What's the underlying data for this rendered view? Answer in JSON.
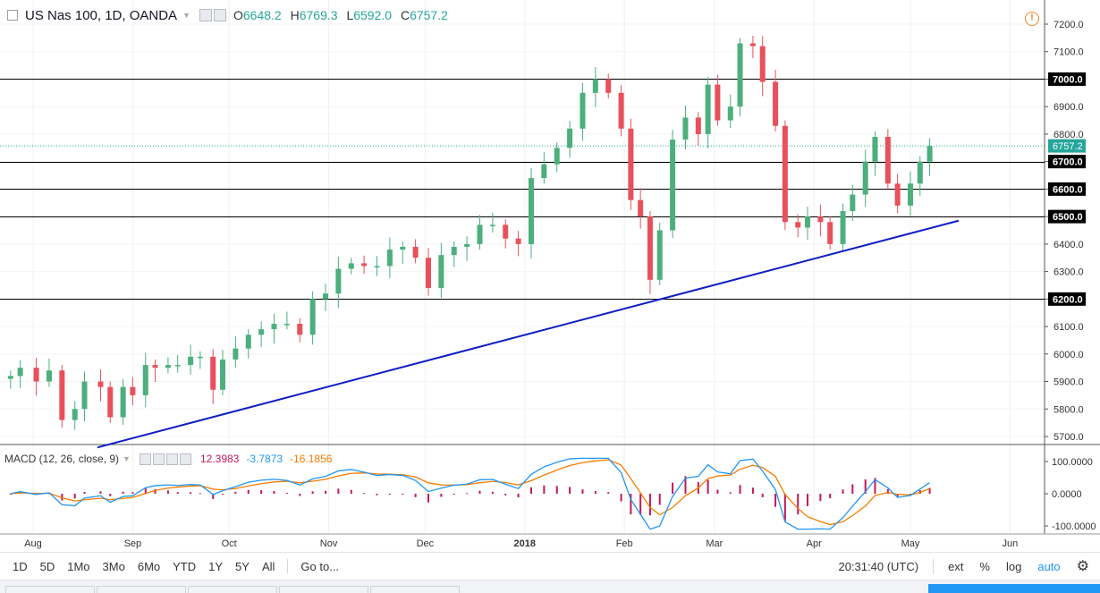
{
  "header": {
    "symbol": "US Nas 100, 1D, OANDA",
    "open_key": "O",
    "open": "6648.2",
    "high_key": "H",
    "high": "6769.3",
    "low_key": "L",
    "low": "6592.0",
    "close_key": "C",
    "close": "6757.2"
  },
  "macd": {
    "title": "MACD (12, 26, close, 9)",
    "histogram": "12.3983",
    "macd": "-3.7873",
    "signal": "-16.1856",
    "colors": {
      "histogram": "#c2185b",
      "macd": "#2196f3",
      "signal": "#f57c00"
    },
    "y_labels": [
      "100.0000",
      "0.0000",
      "-100.0000"
    ]
  },
  "toolbar": {
    "timeframes": [
      "1D",
      "5D",
      "1Mo",
      "3Mo",
      "6Mo",
      "YTD",
      "1Y",
      "5Y",
      "All"
    ],
    "goto": "Go to...",
    "time": "20:31:40 (UTC)",
    "ext": "ext",
    "percent": "%",
    "log": "log",
    "auto": "auto"
  },
  "chart_data": {
    "type": "candlestick",
    "title": "US Nas 100, 1D, OANDA",
    "y_axis_labels": [
      7200,
      7100,
      7000,
      6900,
      6800,
      6700,
      6600,
      6500,
      6400,
      6300,
      6200,
      6100,
      6000,
      5900,
      5800,
      5700
    ],
    "x_axis_labels": [
      {
        "label": "Aug",
        "x": "2017-08-01"
      },
      {
        "label": "Sep",
        "x": "2017-09-01"
      },
      {
        "label": "Oct",
        "x": "2017-10-01"
      },
      {
        "label": "Nov",
        "x": "2017-11-01"
      },
      {
        "label": "Dec",
        "x": "2017-12-01"
      },
      {
        "label": "2018",
        "x": "2018-01-01"
      },
      {
        "label": "Feb",
        "x": "2018-02-01"
      },
      {
        "label": "Mar",
        "x": "2018-03-01"
      },
      {
        "label": "Apr",
        "x": "2018-04-01"
      },
      {
        "label": "May",
        "x": "2018-05-01"
      },
      {
        "label": "Jun",
        "x": "2018-06-01"
      }
    ],
    "horizontal_levels": [
      7000,
      6700,
      6600,
      6500,
      6200
    ],
    "level_labels": [
      "7000.0",
      "6700.0",
      "6600.0",
      "6500.0",
      "6200.0"
    ],
    "last_price": 6757.2,
    "last_price_label": "6757.2",
    "trendline": {
      "from": {
        "x": "2017-08-21",
        "y": 5660
      },
      "to": {
        "x": "2018-05-16",
        "y": 6485
      }
    },
    "colors": {
      "up": "#4caf7d",
      "down": "#e8505b",
      "level": "#000000",
      "trendline": "#0d1ec2",
      "last_price": "#26a69a"
    },
    "closes": [
      [
        "2017-07-25",
        5920
      ],
      [
        "2017-07-28",
        5950
      ],
      [
        "2017-08-02",
        5900
      ],
      [
        "2017-08-06",
        5940
      ],
      [
        "2017-08-10",
        5760
      ],
      [
        "2017-08-14",
        5800
      ],
      [
        "2017-08-17",
        5900
      ],
      [
        "2017-08-22",
        5880
      ],
      [
        "2017-08-25",
        5770
      ],
      [
        "2017-08-29",
        5880
      ],
      [
        "2017-09-01",
        5850
      ],
      [
        "2017-09-05",
        5960
      ],
      [
        "2017-09-08",
        5950
      ],
      [
        "2017-09-12",
        5960
      ],
      [
        "2017-09-15",
        5960
      ],
      [
        "2017-09-19",
        5990
      ],
      [
        "2017-09-22",
        5990
      ],
      [
        "2017-09-26",
        5870
      ],
      [
        "2017-09-29",
        5980
      ],
      [
        "2017-10-03",
        6020
      ],
      [
        "2017-10-07",
        6070
      ],
      [
        "2017-10-11",
        6090
      ],
      [
        "2017-10-15",
        6110
      ],
      [
        "2017-10-19",
        6110
      ],
      [
        "2017-10-23",
        6070
      ],
      [
        "2017-10-27",
        6200
      ],
      [
        "2017-10-31",
        6220
      ],
      [
        "2017-11-04",
        6310
      ],
      [
        "2017-11-08",
        6330
      ],
      [
        "2017-11-12",
        6320
      ],
      [
        "2017-11-16",
        6320
      ],
      [
        "2017-11-20",
        6380
      ],
      [
        "2017-11-24",
        6390
      ],
      [
        "2017-11-28",
        6350
      ],
      [
        "2017-12-02",
        6240
      ],
      [
        "2017-12-06",
        6360
      ],
      [
        "2017-12-10",
        6390
      ],
      [
        "2017-12-14",
        6400
      ],
      [
        "2017-12-18",
        6470
      ],
      [
        "2017-12-22",
        6470
      ],
      [
        "2017-12-26",
        6420
      ],
      [
        "2017-12-30",
        6400
      ],
      [
        "2018-01-03",
        6640
      ],
      [
        "2018-01-07",
        6690
      ],
      [
        "2018-01-11",
        6750
      ],
      [
        "2018-01-15",
        6820
      ],
      [
        "2018-01-19",
        6950
      ],
      [
        "2018-01-23",
        7000
      ],
      [
        "2018-01-27",
        6950
      ],
      [
        "2018-01-31",
        6820
      ],
      [
        "2018-02-03",
        6560
      ],
      [
        "2018-02-06",
        6500
      ],
      [
        "2018-02-09",
        6270
      ],
      [
        "2018-02-12",
        6450
      ],
      [
        "2018-02-16",
        6780
      ],
      [
        "2018-02-20",
        6860
      ],
      [
        "2018-02-24",
        6800
      ],
      [
        "2018-02-27",
        6980
      ],
      [
        "2018-03-02",
        6850
      ],
      [
        "2018-03-06",
        6900
      ],
      [
        "2018-03-09",
        7130
      ],
      [
        "2018-03-13",
        7120
      ],
      [
        "2018-03-16",
        6990
      ],
      [
        "2018-03-20",
        6830
      ],
      [
        "2018-03-23",
        6480
      ],
      [
        "2018-03-27",
        6460
      ],
      [
        "2018-03-30",
        6500
      ],
      [
        "2018-04-03",
        6480
      ],
      [
        "2018-04-06",
        6400
      ],
      [
        "2018-04-10",
        6520
      ],
      [
        "2018-04-13",
        6580
      ],
      [
        "2018-04-17",
        6700
      ],
      [
        "2018-04-20",
        6790
      ],
      [
        "2018-04-24",
        6620
      ],
      [
        "2018-04-27",
        6540
      ],
      [
        "2018-05-01",
        6620
      ],
      [
        "2018-05-04",
        6700
      ],
      [
        "2018-05-07",
        6757
      ]
    ]
  }
}
